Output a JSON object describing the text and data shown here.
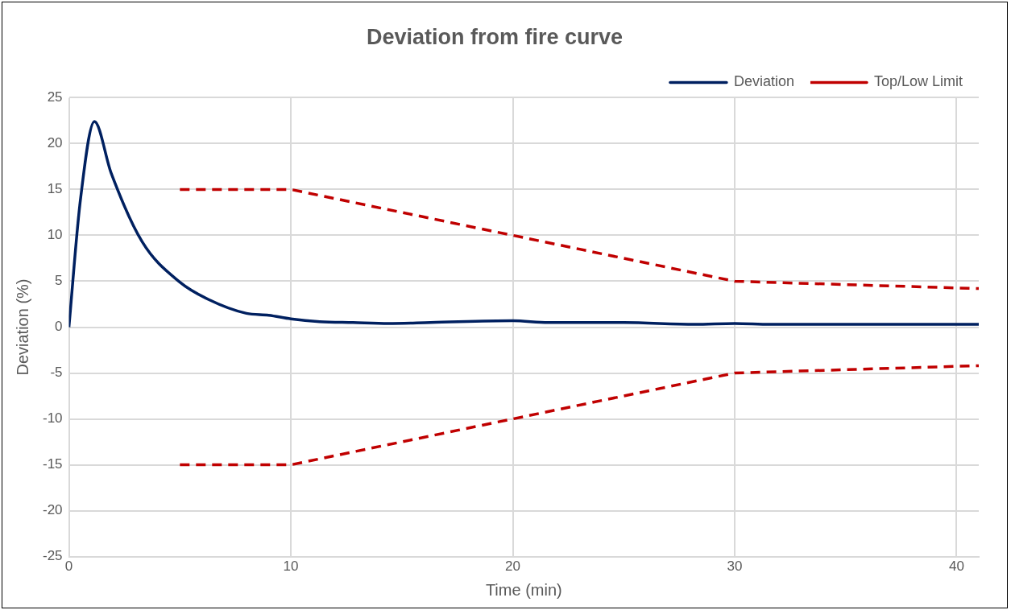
{
  "chart_data": {
    "type": "line",
    "title": "Deviation from fire curve",
    "xlabel": "Time (min)",
    "ylabel": "Deviation (%)",
    "xlim": [
      0,
      41
    ],
    "xticks": [
      0,
      10,
      20,
      30,
      40
    ],
    "ylim": [
      -25,
      25
    ],
    "yticks": [
      -25,
      -20,
      -15,
      -10,
      -5,
      0,
      5,
      10,
      15,
      20,
      25
    ],
    "grid": true,
    "legend": "top right",
    "marker": "none",
    "series": [
      {
        "name": "Deviation",
        "color": "#002060",
        "line_style": "solid",
        "x": [
          0,
          0.5,
          1.15,
          1.9,
          3.3,
          5,
          6.3,
          8,
          9,
          10,
          11.3,
          12.8,
          14.4,
          16.3,
          20,
          21.6,
          25,
          28.2,
          30,
          31.6,
          35,
          37,
          41
        ],
        "values": [
          0,
          13.5,
          22.4,
          16.8,
          9.3,
          4.9,
          3,
          1.5,
          1.3,
          0.9,
          0.6,
          0.5,
          0.4,
          0.5,
          0.7,
          0.5,
          0.5,
          0.3,
          0.4,
          0.3,
          0.3,
          0.3,
          0.3
        ]
      },
      {
        "name": "Top/Low Limit",
        "color": "#c00000",
        "line_style": "dashed",
        "x": [
          5,
          10,
          20,
          30,
          41
        ],
        "values": [
          15,
          15,
          10,
          5,
          4.2
        ]
      },
      {
        "color": "#c00000",
        "line_style": "dashed",
        "x": [
          5,
          10,
          20,
          30,
          41
        ],
        "values": [
          -15,
          -15,
          -10,
          -5,
          -4.2
        ]
      }
    ]
  }
}
